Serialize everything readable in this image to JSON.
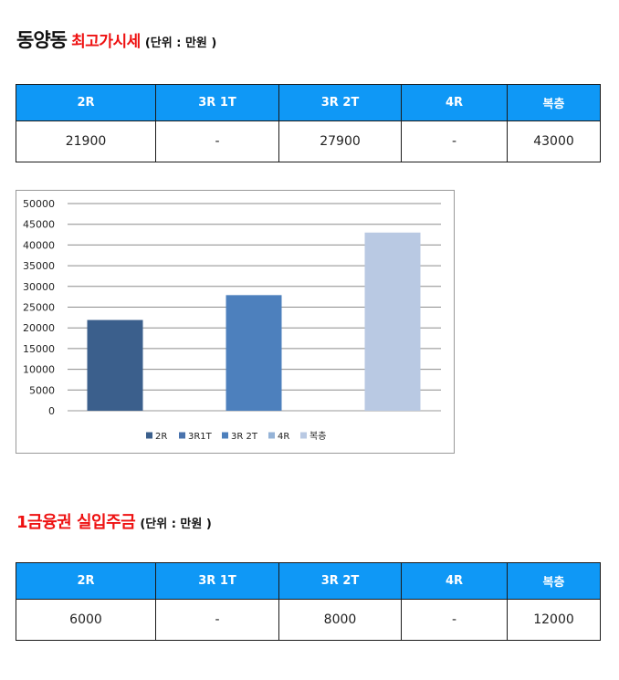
{
  "section1": {
    "title": "동양동",
    "subtitle": "최고가시세",
    "unit": "(단위 : 만원 )",
    "headers": [
      "2R",
      "3R 1T",
      "3R 2T",
      "4R",
      "복층"
    ],
    "values": [
      "21900",
      "-",
      "27900",
      "-",
      "43000"
    ]
  },
  "chart_data": {
    "type": "bar",
    "categories": [
      "2R",
      "3R1T",
      "3R 2T",
      "4R",
      "복층"
    ],
    "values": [
      21900,
      null,
      27900,
      null,
      43000
    ],
    "colors": [
      "#3b5f8c",
      "#4a73ad",
      "#4d80bd",
      "#95b3d7",
      "#b9c9e3"
    ],
    "ylim": [
      0,
      50000
    ],
    "yticks": [
      "0",
      "5000",
      "10000",
      "15000",
      "20000",
      "25000",
      "30000",
      "35000",
      "40000",
      "45000",
      "50000"
    ],
    "legend_position": "bottom",
    "grid": true
  },
  "section2": {
    "title": "1금융권 실입주금",
    "unit": "(단위 : 만원 )",
    "headers": [
      "2R",
      "3R 1T",
      "3R 2T",
      "4R",
      "복층"
    ],
    "values": [
      "6000",
      "-",
      "8000",
      "-",
      "12000"
    ]
  }
}
